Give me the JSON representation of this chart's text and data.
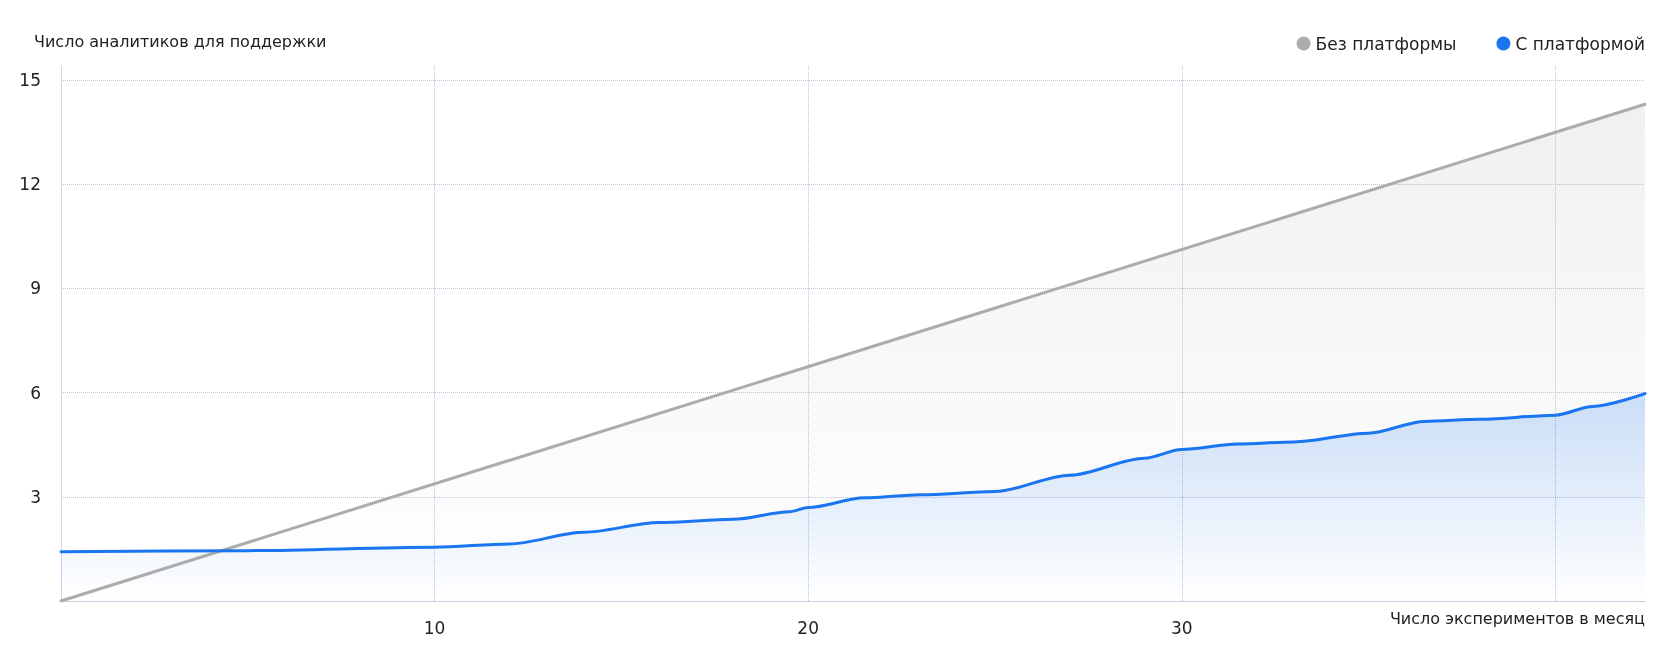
{
  "chart_data": {
    "type": "area",
    "xlabel": "Число экспериментов в месяц",
    "ylabel": "Число аналитиков для поддержки",
    "xlim": [
      0,
      42.4
    ],
    "xticks": [
      10,
      20,
      30,
      {
        "value": 40,
        "label": null
      }
    ],
    "ylim": [
      0,
      15.4
    ],
    "yticks": [
      3,
      6,
      9,
      12,
      15
    ],
    "grid": true,
    "legend": "top right",
    "marker": "none",
    "line_style": "solid",
    "series": [
      {
        "name": "Без платформы",
        "color": "#acacac",
        "x": [
          0,
          42.4
        ],
        "values": [
          0,
          14.3
        ]
      },
      {
        "name": "С платформой",
        "color": "#1a75f0",
        "x": [
          0,
          5,
          10,
          12,
          14,
          16,
          18,
          19.5,
          20,
          21.5,
          23,
          25,
          27,
          29,
          30,
          31.5,
          33,
          35,
          36.5,
          38,
          40,
          41,
          42.4
        ],
        "values": [
          1.42,
          1.45,
          1.55,
          1.64,
          1.98,
          2.26,
          2.35,
          2.57,
          2.69,
          2.97,
          3.06,
          3.15,
          3.62,
          4.11,
          4.36,
          4.52,
          4.58,
          4.83,
          5.17,
          5.23,
          5.35,
          5.6,
          5.97
        ]
      }
    ]
  }
}
